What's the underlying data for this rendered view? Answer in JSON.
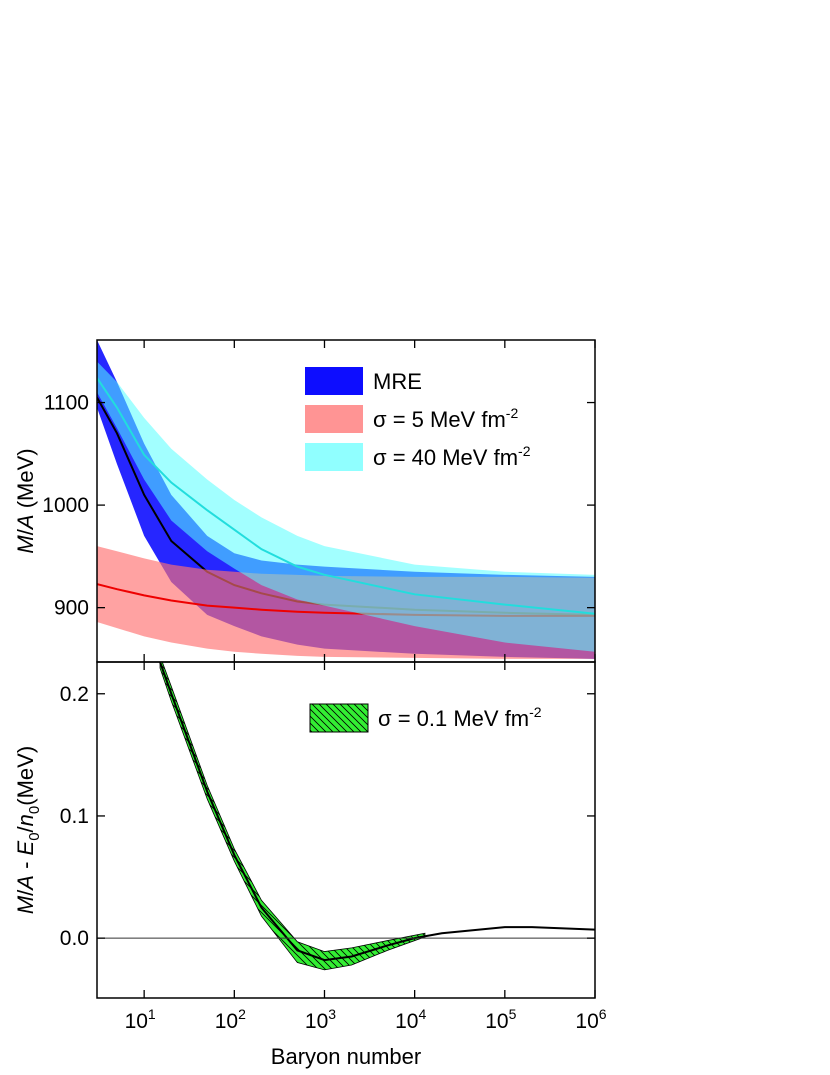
{
  "chart_data": [
    {
      "type": "line",
      "xscale": "log",
      "xlim": [
        3,
        1000000
      ],
      "ylim": [
        847,
        1161
      ],
      "xticks": [
        10,
        100,
        1000,
        10000,
        100000,
        1000000
      ],
      "yticks": [
        900,
        1000,
        1100
      ],
      "ylabel_parts": [
        {
          "text": "M",
          "style": "italic"
        },
        {
          "text": "/",
          "style": "normal"
        },
        {
          "text": "A",
          "style": "italic"
        },
        {
          "text": " (MeV)",
          "style": "normal"
        }
      ],
      "legend": "upper right",
      "series": [
        {
          "name": "MRE",
          "color": "#0000ff",
          "opacity": 0.85,
          "line_color": "#000000",
          "x": [
            3,
            5,
            10,
            20,
            50,
            100,
            200,
            500,
            1000,
            10000,
            100000,
            1000000
          ],
          "upper": [
            1161,
            1120,
            1060,
            1010,
            970,
            953,
            946,
            942,
            940,
            935,
            932,
            930
          ],
          "values": [
            1105,
            1070,
            1010,
            965,
            935,
            922,
            914,
            906,
            903,
            898,
            895,
            893
          ],
          "lower": [
            1095,
            1040,
            970,
            925,
            893,
            882,
            872,
            864,
            860,
            855,
            852,
            850
          ]
        },
        {
          "name": "σ = 5 MeV fm",
          "name_sup": "-2",
          "color": "#ff7070",
          "opacity": 0.65,
          "line_color": "#ee0000",
          "x": [
            3,
            5,
            10,
            20,
            50,
            100,
            200,
            500,
            1000,
            10000,
            100000,
            1000000
          ],
          "upper": [
            960,
            955,
            948,
            942,
            937,
            935,
            933,
            932,
            931,
            930,
            930,
            929
          ],
          "values": [
            923,
            918,
            912,
            907,
            902,
            900,
            898,
            896,
            895,
            893,
            892,
            892
          ],
          "lower": [
            886,
            880,
            872,
            866,
            860,
            857,
            855,
            853,
            852,
            851,
            850,
            850
          ]
        },
        {
          "name": "σ = 40 MeV fm",
          "name_sup": "-2",
          "color": "#55ffff",
          "opacity": 0.55,
          "line_color": "#22dddd",
          "x": [
            3,
            5,
            10,
            20,
            50,
            100,
            200,
            500,
            1000,
            10000,
            100000,
            1000000
          ],
          "upper": [
            1140,
            1120,
            1085,
            1055,
            1025,
            1005,
            988,
            970,
            960,
            942,
            935,
            932
          ],
          "values": [
            1124,
            1095,
            1049,
            1022,
            995,
            976,
            957,
            940,
            932,
            913,
            903,
            894
          ],
          "lower": [
            1110,
            1075,
            1025,
            985,
            955,
            938,
            922,
            908,
            902,
            882,
            866,
            857
          ]
        }
      ]
    },
    {
      "type": "line",
      "xscale": "log",
      "xlim": [
        3,
        1000000
      ],
      "ylim": [
        -0.049,
        0.226
      ],
      "xticks": [
        {
          "value": 10,
          "label": "10",
          "sup": "1"
        },
        {
          "value": 100,
          "label": "10",
          "sup": "2"
        },
        {
          "value": 1000,
          "label": "10",
          "sup": "3"
        },
        {
          "value": 10000,
          "label": "10",
          "sup": "4"
        },
        {
          "value": 100000,
          "label": "10",
          "sup": "5"
        },
        {
          "value": 1000000,
          "label": "10",
          "sup": "6"
        }
      ],
      "yticks": [
        {
          "value": 0,
          "label": "0.0"
        },
        0.1,
        0.2
      ],
      "hline": 0,
      "xlabel": "Baryon number",
      "ylabel_parts": [
        {
          "text": "M",
          "style": "italic"
        },
        {
          "text": "/",
          "style": "normal"
        },
        {
          "text": "A",
          "style": "italic"
        },
        {
          "text": " - ",
          "style": "normal"
        },
        {
          "text": "E",
          "style": "italic"
        },
        {
          "text": "0",
          "style": "sub"
        },
        {
          "text": "/",
          "style": "normal"
        },
        {
          "text": "n",
          "style": "italic"
        },
        {
          "text": "0",
          "style": "sub"
        },
        {
          "text": "(MeV)",
          "style": "normal"
        }
      ],
      "legend": "upper right",
      "series": [
        {
          "name": "σ = 0.1 MeV fm",
          "name_sup": "-2",
          "color": "#33ee33",
          "hatch": true,
          "x": [
            15,
            20,
            50,
            100,
            200,
            500,
            1000,
            2000,
            5000,
            13000
          ],
          "upper": [
            0.231,
            0.206,
            0.125,
            0.073,
            0.031,
            -0.003,
            -0.011,
            -0.008,
            -0.002,
            0.004
          ],
          "lower": [
            0.221,
            0.194,
            0.114,
            0.063,
            0.018,
            -0.02,
            -0.026,
            -0.022,
            -0.01,
            0.001
          ]
        },
        {
          "line_color": "#000000",
          "x": [
            15,
            20,
            50,
            100,
            200,
            500,
            1000,
            2000,
            5000,
            10000,
            20000,
            100000,
            200000,
            1000000
          ],
          "values": [
            0.226,
            0.2,
            0.12,
            0.068,
            0.025,
            -0.01,
            -0.018,
            -0.015,
            -0.006,
            0,
            0.004,
            0.009,
            0.009,
            0.007
          ]
        }
      ]
    }
  ]
}
